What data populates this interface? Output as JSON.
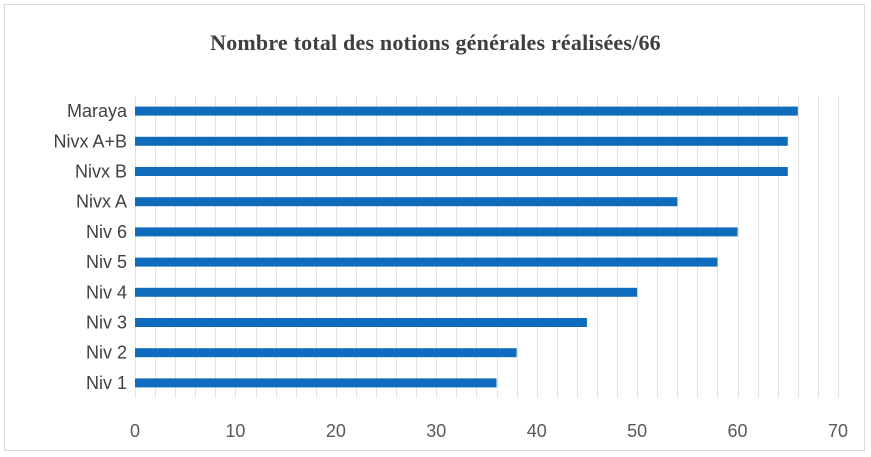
{
  "chart_data": {
    "type": "bar",
    "orientation": "horizontal",
    "title": "Nombre total des notions générales réalisées/66",
    "xlabel": "",
    "ylabel": "",
    "categories": [
      "Niv 1",
      "Niv 2",
      "Niv 3",
      "Niv 4",
      "Niv 5",
      "Niv 6",
      "Nivx A",
      "Nivx B",
      "Nivx A+B",
      "Maraya"
    ],
    "values": [
      36,
      38,
      45,
      50,
      58,
      60,
      54,
      65,
      65,
      66
    ],
    "xlim": [
      0,
      70
    ],
    "xticks": [
      "0",
      "10",
      "20",
      "30",
      "40",
      "50",
      "60",
      "70"
    ],
    "grid": "vertical minor gridlines",
    "legend": "none",
    "bar_color": "#0f6cbd",
    "grid_color": "#e3e3e3"
  }
}
